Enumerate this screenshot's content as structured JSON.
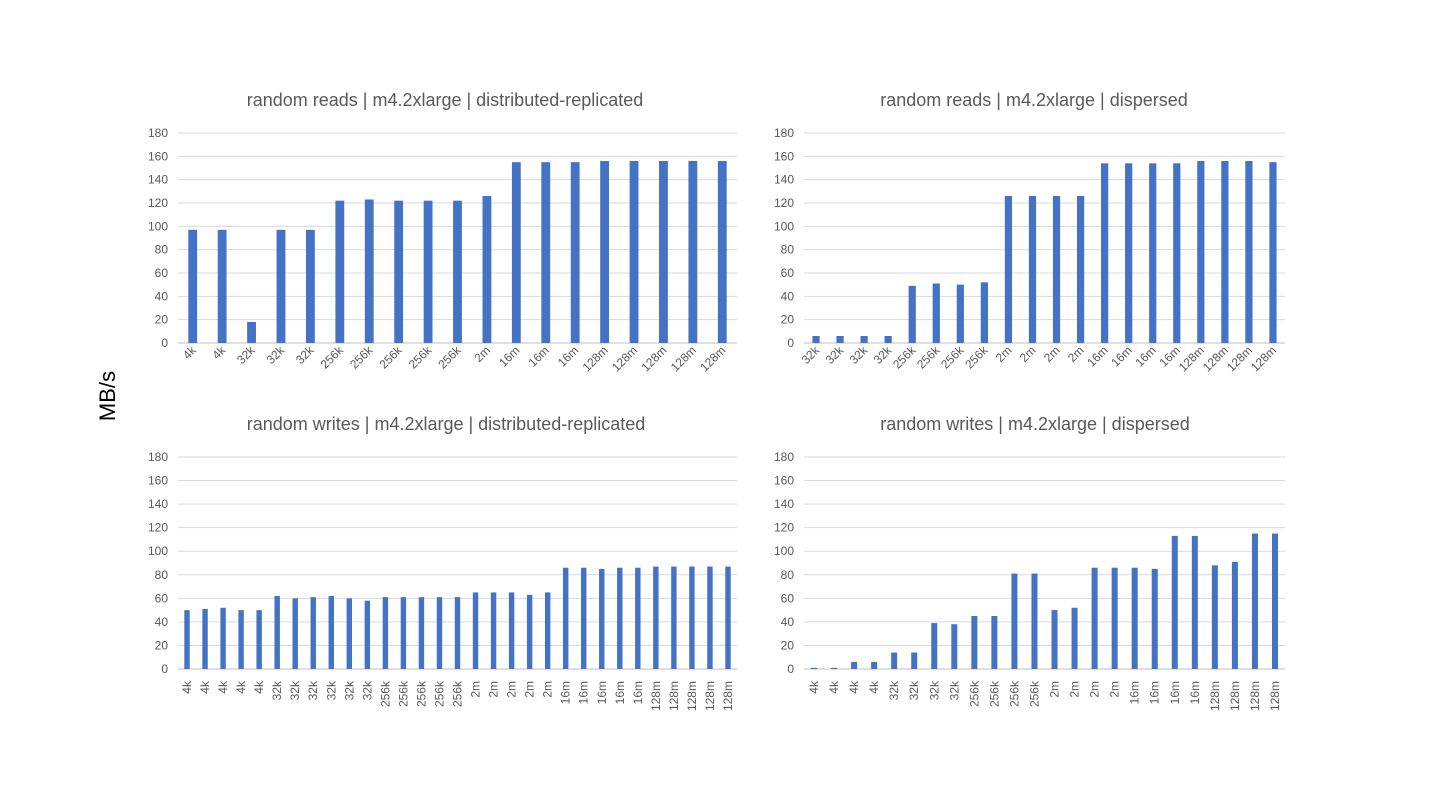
{
  "ylabel": "MB/s",
  "colors": {
    "bar": "#4472C4",
    "grid": "#D9D9D9",
    "text": "#595959"
  },
  "chart_data": [
    {
      "type": "bar",
      "title": "random reads | m4.2xlarge | distributed-replicated",
      "ylim": [
        0,
        180
      ],
      "yticks": [
        0,
        20,
        40,
        60,
        80,
        100,
        120,
        140,
        160,
        180
      ],
      "grid": true,
      "categories": [
        "4k",
        "4k",
        "32k",
        "32k",
        "32k",
        "256k",
        "256k",
        "256k",
        "256k",
        "256k",
        "2m",
        "16m",
        "16m",
        "16m",
        "128m",
        "128m",
        "128m",
        "128m",
        "128m"
      ],
      "values": [
        97,
        97,
        18,
        97,
        97,
        122,
        123,
        122,
        122,
        122,
        126,
        155,
        155,
        155,
        156,
        156,
        156,
        156,
        156
      ]
    },
    {
      "type": "bar",
      "title": "random reads | m4.2xlarge | dispersed",
      "ylim": [
        0,
        180
      ],
      "yticks": [
        0,
        20,
        40,
        60,
        80,
        100,
        120,
        140,
        160,
        180
      ],
      "grid": true,
      "categories": [
        "32k",
        "32k",
        "32k",
        "32k",
        "256k",
        "256k",
        "256k",
        "256k",
        "2m",
        "2m",
        "2m",
        "2m",
        "16m",
        "16m",
        "16m",
        "16m",
        "128m",
        "128m",
        "128m",
        "128m"
      ],
      "values": [
        6,
        6,
        6,
        6,
        49,
        51,
        50,
        52,
        126,
        126,
        126,
        126,
        154,
        154,
        154,
        154,
        156,
        156,
        156,
        155
      ]
    },
    {
      "type": "bar",
      "title": "random writes | m4.2xlarge | distributed-replicated",
      "ylim": [
        0,
        180
      ],
      "yticks": [
        0,
        20,
        40,
        60,
        80,
        100,
        120,
        140,
        160,
        180
      ],
      "grid": true,
      "categories": [
        "4k",
        "4k",
        "4k",
        "4k",
        "4k",
        "32k",
        "32k",
        "32k",
        "32k",
        "32k",
        "32k",
        "256k",
        "256k",
        "256k",
        "256k",
        "256k",
        "2m",
        "2m",
        "2m",
        "2m",
        "2m",
        "16m",
        "16m",
        "16m",
        "16m",
        "16m",
        "128m",
        "128m",
        "128m",
        "128m",
        "128m"
      ],
      "values": [
        50,
        51,
        52,
        50,
        50,
        62,
        60,
        61,
        62,
        60,
        58,
        61,
        61,
        61,
        61,
        61,
        65,
        65,
        65,
        63,
        65,
        86,
        86,
        85,
        86,
        86,
        87,
        87,
        87,
        87,
        87
      ]
    },
    {
      "type": "bar",
      "title": "random writes | m4.2xlarge | dispersed",
      "ylim": [
        0,
        180
      ],
      "yticks": [
        0,
        20,
        40,
        60,
        80,
        100,
        120,
        140,
        160,
        180
      ],
      "grid": true,
      "categories": [
        "4k",
        "4k",
        "4k",
        "4k",
        "32k",
        "32k",
        "32k",
        "32k",
        "256k",
        "256k",
        "256k",
        "256k",
        "2m",
        "2m",
        "2m",
        "2m",
        "16m",
        "16m",
        "16m",
        "16m",
        "128m",
        "128m",
        "128m",
        "128m"
      ],
      "values": [
        1,
        1,
        6,
        6,
        14,
        14,
        39,
        38,
        45,
        45,
        81,
        81,
        50,
        52,
        86,
        86,
        86,
        85,
        113,
        113,
        88,
        91,
        115,
        115
      ]
    }
  ]
}
